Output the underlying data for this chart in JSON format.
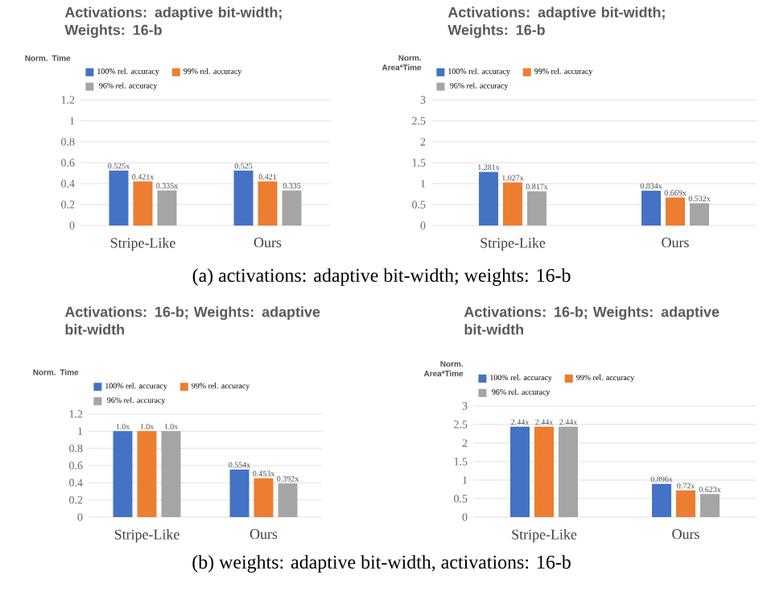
{
  "chart_data": [
    {
      "type": "bar",
      "title": "Activations: adaptive bit-width; Weights: 16-b",
      "ylabel": "Norm. Time",
      "categories": [
        "Stripe-Like",
        "Ours"
      ],
      "series": [
        {
          "name": "100% rel. accuracy",
          "color": "#4472c4",
          "values": [
            0.525,
            0.525
          ],
          "value_labels": [
            "0.525x",
            "0.525"
          ]
        },
        {
          "name": "99% rel. accuracy",
          "color": "#ed7d31",
          "values": [
            0.421,
            0.421
          ],
          "value_labels": [
            "0.421x",
            "0.421"
          ]
        },
        {
          "name": "96% rel. accuracy",
          "color": "#a5a5a5",
          "values": [
            0.335,
            0.335
          ],
          "value_labels": [
            "0.335x",
            "0.335"
          ]
        }
      ],
      "ylim": [
        0,
        1.2
      ],
      "yticks": [
        0,
        0.2,
        0.4,
        0.6,
        0.8,
        1,
        1.2
      ],
      "grid": "y",
      "legend": "top",
      "annotations": [
        "(a)  activations: adaptive bit-width;    weights: 16-b"
      ]
    },
    {
      "type": "bar",
      "title": "Activations: adaptive bit-width; Weights: 16-b",
      "ylabel": "Norm. Area*Time",
      "categories": [
        "Stripe-Like",
        "Ours"
      ],
      "series": [
        {
          "name": "100% rel. accuracy",
          "color": "#4472c4",
          "values": [
            1.281,
            0.834
          ],
          "value_labels": [
            "1.281x",
            "0.834x"
          ]
        },
        {
          "name": "99% rel. accuracy",
          "color": "#ed7d31",
          "values": [
            1.027,
            0.669
          ],
          "value_labels": [
            "1.027x",
            "0.669x"
          ]
        },
        {
          "name": "96% rel. accuracy",
          "color": "#a5a5a5",
          "values": [
            0.817,
            0.532
          ],
          "value_labels": [
            "0.817x",
            "0.532x"
          ]
        }
      ],
      "ylim": [
        0,
        3
      ],
      "yticks": [
        0,
        0.5,
        1,
        1.5,
        2,
        2.5,
        3
      ],
      "grid": "y",
      "legend": "top"
    },
    {
      "type": "bar",
      "title": "Activations: 16-b; Weights: adaptive bit-width",
      "ylabel": "Norm. Time",
      "categories": [
        "Stripe-Like",
        "Ours"
      ],
      "series": [
        {
          "name": "100% rel. accuracy",
          "color": "#4472c4",
          "values": [
            1.0,
            0.554
          ],
          "value_labels": [
            "1.0x",
            "0.554x"
          ]
        },
        {
          "name": "99% rel. accuracy",
          "color": "#ed7d31",
          "values": [
            1.0,
            0.453
          ],
          "value_labels": [
            "1.0x",
            "0.453x"
          ]
        },
        {
          "name": "96% rel. accuracy",
          "color": "#a5a5a5",
          "values": [
            1.0,
            0.392
          ],
          "value_labels": [
            "1.0x",
            "0.392x"
          ]
        }
      ],
      "ylim": [
        0,
        1.2
      ],
      "yticks": [
        0,
        0.2,
        0.4,
        0.6,
        0.8,
        1,
        1.2
      ],
      "grid": "y",
      "legend": "top",
      "annotations": [
        "(b) weights: adaptive bit-width,    activations: 16-b"
      ]
    },
    {
      "type": "bar",
      "title": "Activations: 16-b; Weights: adaptive bit-width",
      "ylabel": "Norm. Area*Time",
      "categories": [
        "Stripe-Like",
        "Ours"
      ],
      "series": [
        {
          "name": "100% rel. accuracy",
          "color": "#4472c4",
          "values": [
            2.44,
            0.896
          ],
          "value_labels": [
            "2.44x",
            "0.896x"
          ]
        },
        {
          "name": "99% rel. accuracy",
          "color": "#ed7d31",
          "values": [
            2.44,
            0.72
          ],
          "value_labels": [
            "2.44x",
            "0.72x"
          ]
        },
        {
          "name": "96% rel. accuracy",
          "color": "#a5a5a5",
          "values": [
            2.44,
            0.623
          ],
          "value_labels": [
            "2.44x",
            "0.623x"
          ]
        }
      ],
      "ylim": [
        0,
        3
      ],
      "yticks": [
        0,
        0.5,
        1,
        1.5,
        2,
        2.5,
        3
      ],
      "grid": "y",
      "legend": "top"
    }
  ]
}
